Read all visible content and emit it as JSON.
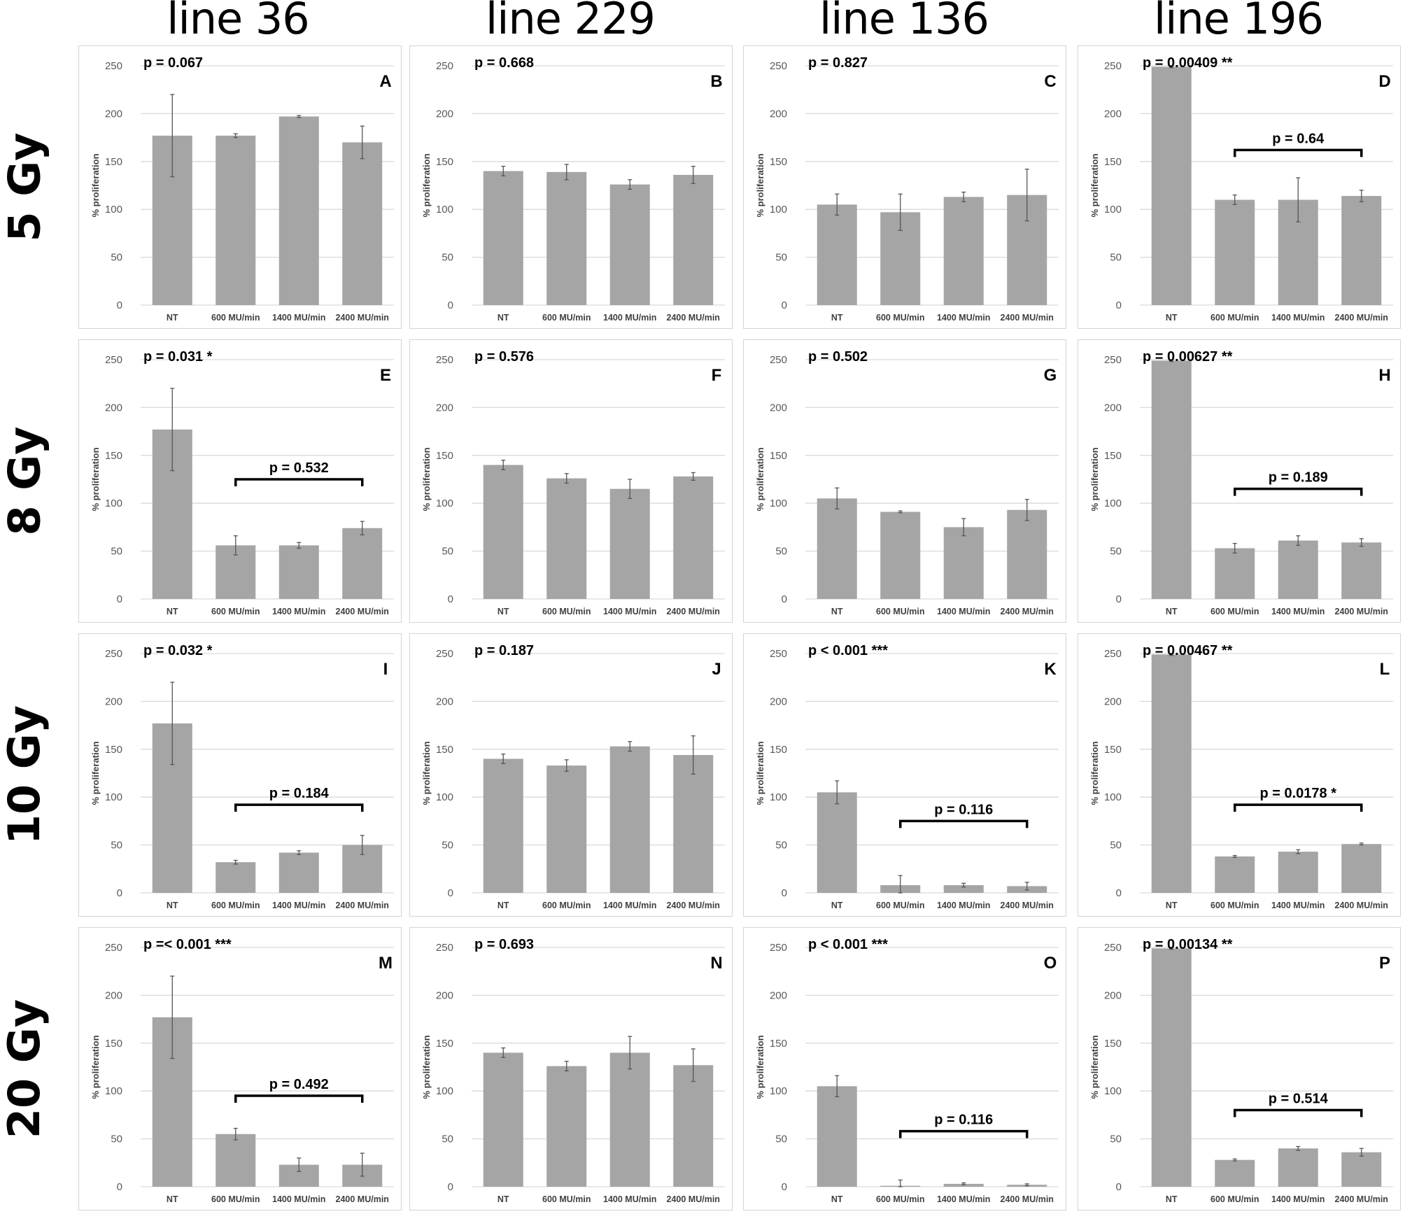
{
  "columns": [
    "line 36",
    "line 229",
    "line 136",
    "line 196"
  ],
  "rows": [
    "5 Gy",
    "8 Gy",
    "10 Gy",
    "20 Gy"
  ],
  "chart_data": [
    {
      "id": "A",
      "type": "bar",
      "title": "A",
      "col": 0,
      "row": 0,
      "categories": [
        "NT",
        "600 MU/min",
        "1400 MU/min",
        "2400 MU/min"
      ],
      "values": [
        177,
        177,
        197,
        170
      ],
      "errors": [
        43,
        2,
        1,
        17
      ],
      "ylabel": "% proliferation",
      "ylim": [
        0,
        250
      ],
      "yticks": [
        0,
        50,
        100,
        150,
        200,
        250
      ],
      "p_main": "p = 0.067",
      "bracket": null
    },
    {
      "id": "B",
      "type": "bar",
      "title": "B",
      "col": 1,
      "row": 0,
      "categories": [
        "NT",
        "600 MU/min",
        "1400 MU/min",
        "2400 MU/min"
      ],
      "values": [
        140,
        139,
        126,
        136
      ],
      "errors": [
        5,
        8,
        5,
        9
      ],
      "ylabel": "% proliferation",
      "ylim": [
        0,
        250
      ],
      "yticks": [
        0,
        50,
        100,
        150,
        200,
        250
      ],
      "p_main": "p = 0.668",
      "bracket": null
    },
    {
      "id": "C",
      "type": "bar",
      "title": "C",
      "col": 2,
      "row": 0,
      "categories": [
        "NT",
        "600 MU/min",
        "1400 MU/min",
        "2400 MU/min"
      ],
      "values": [
        105,
        97,
        113,
        115
      ],
      "errors": [
        11,
        19,
        5,
        27
      ],
      "ylabel": "% proliferation",
      "ylim": [
        0,
        250
      ],
      "yticks": [
        0,
        50,
        100,
        150,
        200,
        250
      ],
      "p_main": "p = 0.827",
      "bracket": null
    },
    {
      "id": "D",
      "type": "bar",
      "title": "D",
      "col": 3,
      "row": 0,
      "categories": [
        "NT",
        "600 MU/min",
        "1400 MU/min",
        "2400 MU/min"
      ],
      "values": [
        249,
        110,
        110,
        114
      ],
      "errors": [
        1,
        5,
        23,
        6
      ],
      "ylabel": "% proliferation",
      "ylim": [
        0,
        250
      ],
      "yticks": [
        0,
        50,
        100,
        150,
        200,
        250
      ],
      "p_main": "p = 0.00409 **",
      "bracket": {
        "label": "p = 0.64",
        "from": 1,
        "to": 3,
        "level": 162
      }
    },
    {
      "id": "E",
      "type": "bar",
      "title": "E",
      "col": 0,
      "row": 1,
      "categories": [
        "NT",
        "600 MU/min",
        "1400 MU/min",
        "2400 MU/min"
      ],
      "values": [
        177,
        56,
        56,
        74
      ],
      "errors": [
        43,
        10,
        3,
        7
      ],
      "ylabel": "% proliferation",
      "ylim": [
        0,
        250
      ],
      "yticks": [
        0,
        50,
        100,
        150,
        200,
        250
      ],
      "p_main": "p = 0.031 *",
      "bracket": {
        "label": "p = 0.532",
        "from": 1,
        "to": 3,
        "level": 125
      }
    },
    {
      "id": "F",
      "type": "bar",
      "title": "F",
      "col": 1,
      "row": 1,
      "categories": [
        "NT",
        "600 MU/min",
        "1400 MU/min",
        "2400 MU/min"
      ],
      "values": [
        140,
        126,
        115,
        128
      ],
      "errors": [
        5,
        5,
        10,
        4
      ],
      "ylabel": "% proliferation",
      "ylim": [
        0,
        250
      ],
      "yticks": [
        0,
        50,
        100,
        150,
        200,
        250
      ],
      "p_main": "p = 0.576",
      "bracket": null
    },
    {
      "id": "G",
      "type": "bar",
      "title": "G",
      "col": 2,
      "row": 1,
      "categories": [
        "NT",
        "600 MU/min",
        "1400 MU/min",
        "2400 MU/min"
      ],
      "values": [
        105,
        91,
        75,
        93
      ],
      "errors": [
        11,
        1,
        9,
        11
      ],
      "ylabel": "% proliferation",
      "ylim": [
        0,
        250
      ],
      "yticks": [
        0,
        50,
        100,
        150,
        200,
        250
      ],
      "p_main": "p = 0.502",
      "bracket": null
    },
    {
      "id": "H",
      "type": "bar",
      "title": "H",
      "col": 3,
      "row": 1,
      "categories": [
        "NT",
        "600 MU/min",
        "1400 MU/min",
        "2400 MU/min"
      ],
      "values": [
        249,
        53,
        61,
        59
      ],
      "errors": [
        1,
        5,
        5,
        4
      ],
      "ylabel": "% proliferation",
      "ylim": [
        0,
        250
      ],
      "yticks": [
        0,
        50,
        100,
        150,
        200,
        250
      ],
      "p_main": "p = 0.00627 **",
      "bracket": {
        "label": "p = 0.189",
        "from": 1,
        "to": 3,
        "level": 115
      }
    },
    {
      "id": "I",
      "type": "bar",
      "title": "I",
      "col": 0,
      "row": 2,
      "categories": [
        "NT",
        "600 MU/min",
        "1400 MU/min",
        "2400 MU/min"
      ],
      "values": [
        177,
        32,
        42,
        50
      ],
      "errors": [
        43,
        2,
        2,
        10
      ],
      "ylabel": "% proliferation",
      "ylim": [
        0,
        250
      ],
      "yticks": [
        0,
        50,
        100,
        150,
        200,
        250
      ],
      "p_main": "p = 0.032 *",
      "bracket": {
        "label": "p = 0.184",
        "from": 1,
        "to": 3,
        "level": 92
      }
    },
    {
      "id": "J",
      "type": "bar",
      "title": "J",
      "col": 1,
      "row": 2,
      "categories": [
        "NT",
        "600 MU/min",
        "1400 MU/min",
        "2400 MU/min"
      ],
      "values": [
        140,
        133,
        153,
        144
      ],
      "errors": [
        5,
        6,
        5,
        20
      ],
      "ylabel": "% proliferation",
      "ylim": [
        0,
        250
      ],
      "yticks": [
        0,
        50,
        100,
        150,
        200,
        250
      ],
      "p_main": "p = 0.187",
      "bracket": null
    },
    {
      "id": "K",
      "type": "bar",
      "title": "K",
      "col": 2,
      "row": 2,
      "categories": [
        "NT",
        "600 MU/min",
        "1400 MU/min",
        "2400 MU/min"
      ],
      "values": [
        105,
        8,
        8,
        7
      ],
      "errors": [
        12,
        10,
        2,
        4
      ],
      "ylabel": "% proliferation",
      "ylim": [
        0,
        250
      ],
      "yticks": [
        0,
        50,
        100,
        150,
        200,
        250
      ],
      "p_main": "p < 0.001 ***",
      "bracket": {
        "label": "p = 0.116",
        "from": 1,
        "to": 3,
        "level": 75
      }
    },
    {
      "id": "L",
      "type": "bar",
      "title": "L",
      "col": 3,
      "row": 2,
      "categories": [
        "NT",
        "600 MU/min",
        "1400 MU/min",
        "2400 MU/min"
      ],
      "values": [
        249,
        38,
        43,
        51
      ],
      "errors": [
        1,
        1,
        2,
        1
      ],
      "ylabel": "% proliferation",
      "ylim": [
        0,
        250
      ],
      "yticks": [
        0,
        50,
        100,
        150,
        200,
        250
      ],
      "p_main": "p = 0.00467 **",
      "bracket": {
        "label": "p = 0.0178 *",
        "from": 1,
        "to": 3,
        "level": 92
      }
    },
    {
      "id": "M",
      "type": "bar",
      "title": "M",
      "col": 0,
      "row": 3,
      "categories": [
        "NT",
        "600 MU/min",
        "1400 MU/min",
        "2400 MU/min"
      ],
      "values": [
        177,
        55,
        23,
        23
      ],
      "errors": [
        43,
        6,
        7,
        12
      ],
      "ylabel": "% proliferation",
      "ylim": [
        0,
        250
      ],
      "yticks": [
        0,
        50,
        100,
        150,
        200,
        250
      ],
      "p_main": "p =< 0.001 ***",
      "bracket": {
        "label": "p = 0.492",
        "from": 1,
        "to": 3,
        "level": 95
      }
    },
    {
      "id": "N",
      "type": "bar",
      "title": "N",
      "col": 1,
      "row": 3,
      "categories": [
        "NT",
        "600 MU/min",
        "1400 MU/min",
        "2400 MU/min"
      ],
      "values": [
        140,
        126,
        140,
        127
      ],
      "errors": [
        5,
        5,
        17,
        17
      ],
      "ylabel": "% proliferation",
      "ylim": [
        0,
        250
      ],
      "yticks": [
        0,
        50,
        100,
        150,
        200,
        250
      ],
      "p_main": "p = 0.693",
      "bracket": null
    },
    {
      "id": "O",
      "type": "bar",
      "title": "O",
      "col": 2,
      "row": 3,
      "categories": [
        "NT",
        "600 MU/min",
        "1400 MU/min",
        "2400 MU/min"
      ],
      "values": [
        105,
        1,
        3,
        2
      ],
      "errors": [
        11,
        6,
        1,
        1
      ],
      "ylabel": "% proliferation",
      "ylim": [
        0,
        250
      ],
      "yticks": [
        0,
        50,
        100,
        150,
        200,
        250
      ],
      "p_main": "p < 0.001 ***",
      "bracket": {
        "label": "p = 0.116",
        "from": 1,
        "to": 3,
        "level": 58
      }
    },
    {
      "id": "P",
      "type": "bar",
      "title": "P",
      "col": 3,
      "row": 3,
      "categories": [
        "NT",
        "600 MU/min",
        "1400 MU/min",
        "2400 MU/min"
      ],
      "values": [
        249,
        28,
        40,
        36
      ],
      "errors": [
        1,
        1,
        2,
        4
      ],
      "ylabel": "% proliferation",
      "ylim": [
        0,
        250
      ],
      "yticks": [
        0,
        50,
        100,
        150,
        200,
        250
      ],
      "p_main": "p = 0.00134 **",
      "bracket": {
        "label": "p = 0.514",
        "from": 1,
        "to": 3,
        "level": 80
      }
    }
  ]
}
